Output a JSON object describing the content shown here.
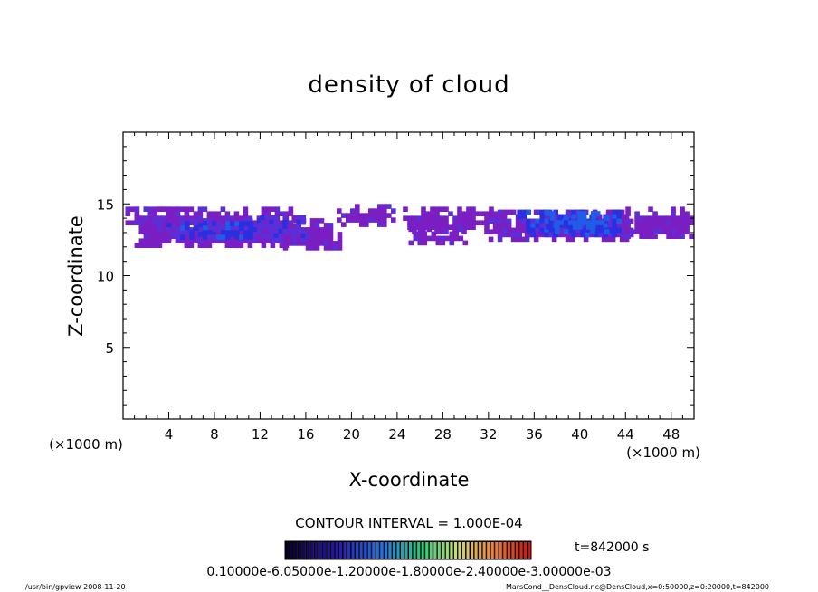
{
  "chart_data": {
    "type": "heatmap",
    "title": "density of cloud",
    "xlabel": "X-coordinate",
    "ylabel": "Z-coordinate",
    "x_unit": "(×1000 m)",
    "y_unit": "(×1000 m)",
    "xlim": [
      0,
      50
    ],
    "ylim": [
      0,
      20
    ],
    "xticks": [
      4,
      8,
      12,
      16,
      20,
      24,
      28,
      32,
      36,
      40,
      44,
      48
    ],
    "yticks": [
      5,
      10,
      15
    ],
    "contour_interval": "CONTOUR INTERVAL = 1.000E-04",
    "time_label": "t=842000 s",
    "colorbar_labels": "0.10000e-6.05000e-1.20000e-1.80000e-2.40000e-3.00000e-03",
    "footer_left": "/usr/bin/gpview   2008-11-20",
    "footer_right": "MarsCond__DensCloud.nc@DensCloud,x=0:50000,z=0:20000,t=842000",
    "colors": {
      "low": "#7a1fc4",
      "mid_low": "#5a2fd8",
      "mid": "#2a2fe0",
      "high": "#1f5ce8"
    },
    "regions": [
      {
        "x0": 0.2,
        "x1": 5.5,
        "z0": 13.2,
        "z1": 14.8,
        "level": 0
      },
      {
        "x0": 1.0,
        "x1": 14.5,
        "z0": 12.0,
        "z1": 14.8,
        "level": 0
      },
      {
        "x0": 14.0,
        "x1": 18.8,
        "z0": 12.0,
        "z1": 14.0,
        "level": 0
      },
      {
        "x0": 3.0,
        "x1": 12.5,
        "z0": 12.6,
        "z1": 14.0,
        "level": 1
      },
      {
        "x0": 5.0,
        "x1": 11.0,
        "z0": 12.8,
        "z1": 13.8,
        "level": 2
      },
      {
        "x0": 12.0,
        "x1": 16.0,
        "z0": 12.4,
        "z1": 14.2,
        "level": 1
      },
      {
        "x0": 18.7,
        "x1": 23.5,
        "z0": 13.5,
        "z1": 15.0,
        "level": 0
      },
      {
        "x0": 24.5,
        "x1": 32.5,
        "z0": 13.0,
        "z1": 14.8,
        "level": 0
      },
      {
        "x0": 25.0,
        "x1": 30.0,
        "z0": 12.2,
        "z1": 13.4,
        "level": 0
      },
      {
        "x0": 32.0,
        "x1": 44.5,
        "z0": 12.4,
        "z1": 14.6,
        "level": 0
      },
      {
        "x0": 34.5,
        "x1": 43.5,
        "z0": 12.9,
        "z1": 14.6,
        "level": 2
      },
      {
        "x0": 37.0,
        "x1": 42.5,
        "z0": 13.2,
        "z1": 14.5,
        "level": 3
      },
      {
        "x0": 44.0,
        "x1": 50.0,
        "z0": 12.8,
        "z1": 14.8,
        "level": 0
      }
    ]
  }
}
